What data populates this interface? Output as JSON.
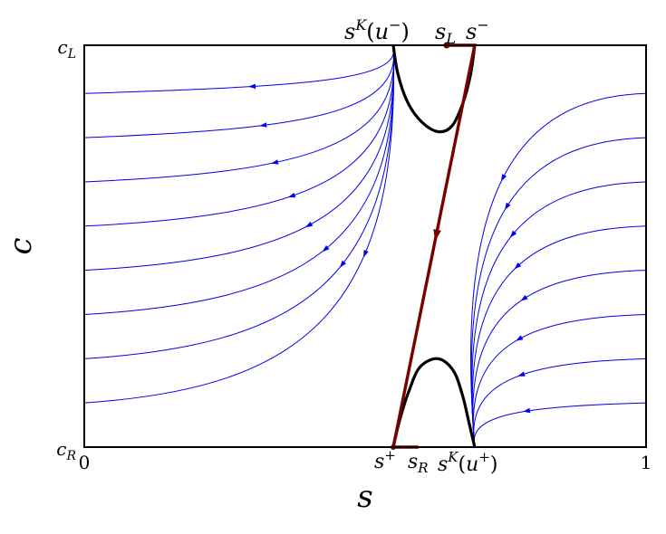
{
  "chart_data": {
    "type": "line",
    "title": "",
    "xlabel": "s",
    "ylabel": "c",
    "xlim": [
      0,
      1
    ],
    "ylim": [
      0,
      1
    ],
    "x_tick_labels": [
      "0",
      "1"
    ],
    "y_tick_labels": [
      "c_R",
      "c_L"
    ],
    "grid": false,
    "legend": "none",
    "top_annotations": [
      "s^K(u^-)",
      "s_L",
      "s^-"
    ],
    "bottom_annotations": [
      "s^+",
      "s_R",
      "s^K(u^+)"
    ],
    "key_points": {
      "sK_u_minus": 0.55,
      "s_L": 0.645,
      "s_minus": 0.695,
      "s_plus": 0.55,
      "s_R": 0.595,
      "sK_u_plus": 0.695
    },
    "colors": {
      "streamline": "#0000ee",
      "transition_path": "#7a0000",
      "inflection_curve": "#000000",
      "frame": "#000000"
    },
    "series": [
      {
        "values": [
          [
            0.55,
            1.0
          ],
          [
            0.558,
            0.93
          ],
          [
            0.575,
            0.86
          ],
          [
            0.6,
            0.81
          ],
          [
            0.63,
            0.785
          ],
          [
            0.655,
            0.8
          ],
          [
            0.675,
            0.86
          ],
          [
            0.688,
            0.93
          ],
          [
            0.695,
            1.0
          ]
        ]
      },
      {
        "values": [
          [
            0.55,
            0.0
          ],
          [
            0.562,
            0.07
          ],
          [
            0.578,
            0.14
          ],
          [
            0.598,
            0.2
          ],
          [
            0.63,
            0.22
          ],
          [
            0.657,
            0.19
          ],
          [
            0.673,
            0.13
          ],
          [
            0.685,
            0.06
          ],
          [
            0.695,
            0.0
          ]
        ]
      },
      {
        "values": [
          [
            0.645,
            1.0
          ],
          [
            0.695,
            1.0
          ],
          [
            0.55,
            0.0
          ],
          [
            0.595,
            0.0
          ]
        ]
      }
    ],
    "streamlines_left": [
      {
        "c_start": 0.88,
        "arrow_s": 0.3
      },
      {
        "c_start": 0.77,
        "arrow_s": 0.32
      },
      {
        "c_start": 0.66,
        "arrow_s": 0.34
      },
      {
        "c_start": 0.55,
        "arrow_s": 0.37
      },
      {
        "c_start": 0.44,
        "arrow_s": 0.4
      },
      {
        "c_start": 0.33,
        "arrow_s": 0.43
      },
      {
        "c_start": 0.22,
        "arrow_s": 0.46
      },
      {
        "c_start": 0.11,
        "arrow_s": 0.5
      }
    ],
    "streamlines_right": [
      {
        "c_start": 0.88,
        "arrow_c": 0.67
      },
      {
        "c_start": 0.77,
        "arrow_c": 0.6
      },
      {
        "c_start": 0.66,
        "arrow_c": 0.53
      },
      {
        "c_start": 0.55,
        "arrow_c": 0.45
      },
      {
        "c_start": 0.44,
        "arrow_c": 0.37
      },
      {
        "c_start": 0.33,
        "arrow_c": 0.27
      },
      {
        "c_start": 0.22,
        "arrow_c": 0.18
      },
      {
        "c_start": 0.11,
        "arrow_c": 0.09
      }
    ]
  }
}
